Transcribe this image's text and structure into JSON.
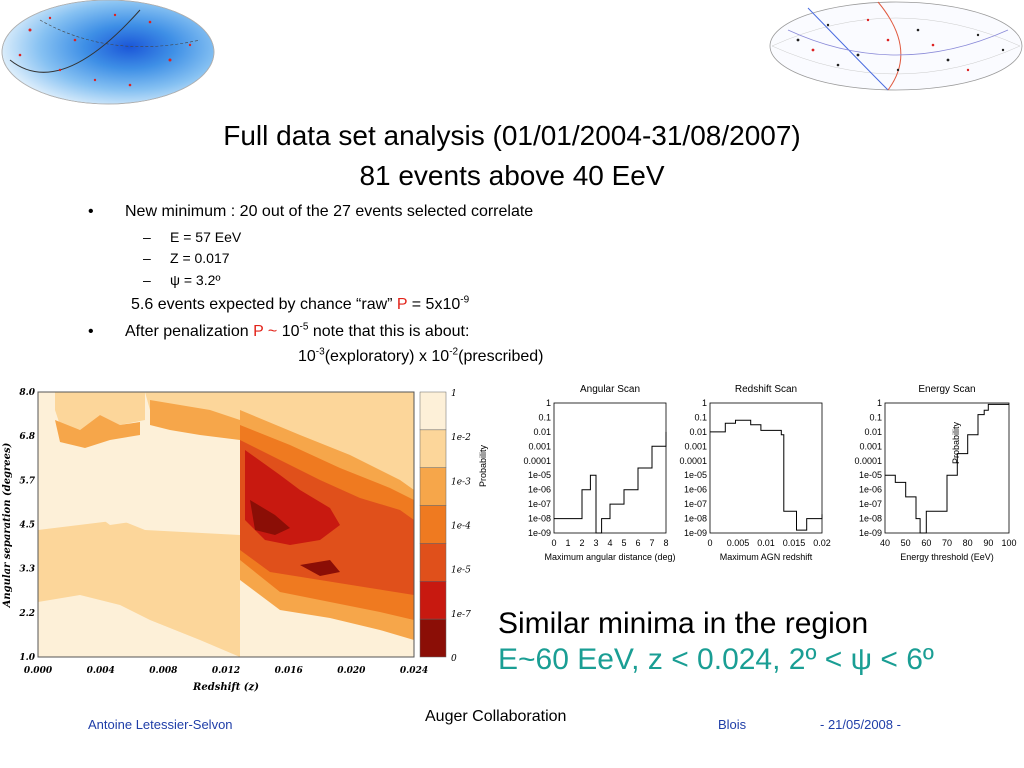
{
  "title": {
    "line1": "Full data set analysis (01/01/2004-31/08/2007)",
    "line2": "81 events above 40 EeV"
  },
  "bullets": {
    "b1": "New minimum : 20 out of the 27 events selected correlate",
    "subs": [
      {
        "dash": "–",
        "text": "E = 57 EeV"
      },
      {
        "dash": "–",
        "text": "Z = 0.017"
      },
      {
        "dash": "–",
        "text": "ψ = 3.2º"
      }
    ],
    "raw_pre": "5.6 events expected by chance “raw” ",
    "raw_P": "P",
    "raw_eq": " = 5x10",
    "raw_exp": "-9",
    "b2_pre": "After penalization ",
    "b2_P": "P ~",
    "b2_ten": " 10",
    "b2_exp": "-5",
    "b2_post": " note that this is about:",
    "l3_a": "10",
    "l3_a_exp": "-3",
    "l3_b": "(exploratory) x 10",
    "l3_b_exp": "-2",
    "l3_c": "(prescribed)"
  },
  "contour": {
    "yticks": [
      "8.0",
      "6.8",
      "5.7",
      "4.5",
      "3.3",
      "2.2",
      "1.0"
    ],
    "xticks": [
      "0.000",
      "0.004",
      "0.008",
      "0.012",
      "0.016",
      "0.020",
      "0.024"
    ],
    "ylabel": "Angular separation (degrees)",
    "xlabel": "Redshift (z)",
    "colorbar_labels": [
      "1",
      "1e-2",
      "1e-3",
      "1e-4",
      "1e-5",
      "1e-7",
      "0"
    ],
    "colorbar_title": "Probability",
    "colors": [
      "#fdf0d8",
      "#fcd69a",
      "#f6a64a",
      "#ef7a20",
      "#e0501b",
      "#c81910",
      "#8b0e06"
    ]
  },
  "scans": {
    "yticks": [
      "1",
      "0.1",
      "0.01",
      "0.001",
      "0.0001",
      "1e-05",
      "1e-06",
      "1e-07",
      "1e-08",
      "1e-09"
    ],
    "panels": [
      {
        "title": "Angular Scan",
        "xlabel": "Maximum angular distance (deg)",
        "xticks": [
          "0",
          "1",
          "2",
          "3",
          "4",
          "5",
          "6",
          "7",
          "8"
        ]
      },
      {
        "title": "Redshift Scan",
        "xlabel": "Maximum AGN redshift",
        "xticks": [
          "0",
          "0.005",
          "0.01",
          "0.015",
          "0.02"
        ]
      },
      {
        "title": "Energy Scan",
        "xlabel": "Energy threshold (EeV)",
        "xticks": [
          "40",
          "50",
          "60",
          "70",
          "80",
          "90",
          "100"
        ]
      }
    ]
  },
  "similar": {
    "line1": "Similar minima in the region",
    "line2": "E~60 EeV, z < 0.024, 2º < ψ < 6º"
  },
  "footer": {
    "author": "Antoine Letessier-Selvon",
    "collab": "Auger Collaboration",
    "place": "Blois",
    "date": "- 21/05/2008 -"
  }
}
